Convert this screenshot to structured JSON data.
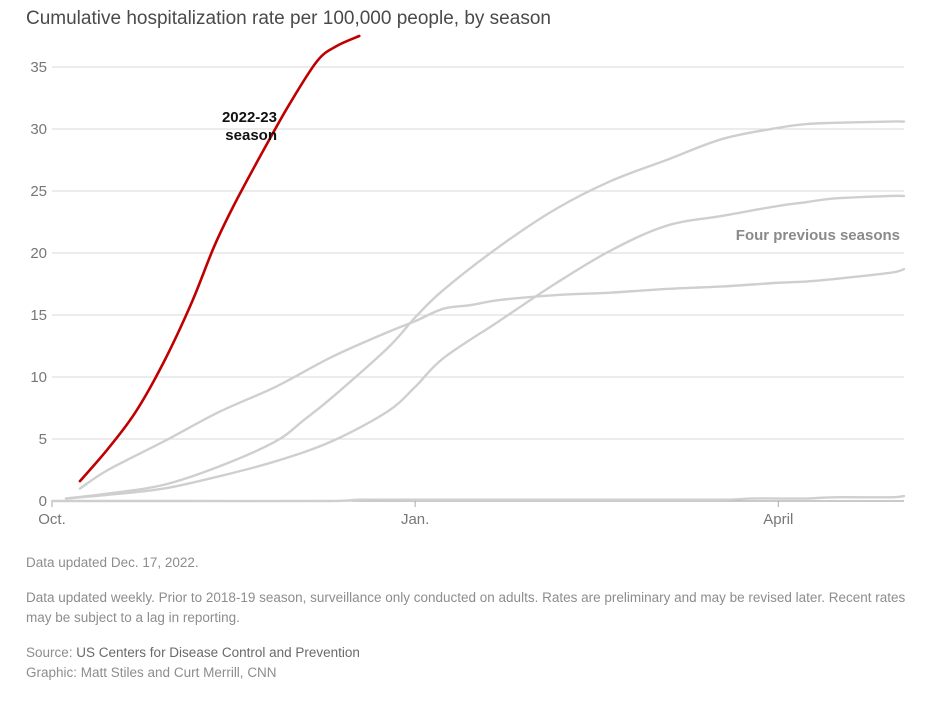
{
  "title": "Cumulative hospitalization rate per 100,000 people, by season",
  "colors": {
    "highlight": "#c00000",
    "previous": "#cfcfcf",
    "grid": "#d9d9d9",
    "axis": "#aaaaaa"
  },
  "chart_data": {
    "type": "line",
    "title": "Cumulative hospitalization rate per 100,000 people, by season",
    "xlabel": "",
    "ylabel": "",
    "x_units": "weeks since Oct. 1",
    "xlim": [
      0,
      30.5
    ],
    "ylim": [
      0,
      37.5
    ],
    "yticks": [
      0,
      5,
      10,
      15,
      20,
      25,
      30,
      35
    ],
    "xticks": [
      {
        "value": 0,
        "label": "Oct."
      },
      {
        "value": 13,
        "label": "Jan."
      },
      {
        "value": 26,
        "label": "April"
      }
    ],
    "grid": true,
    "annotations": [
      {
        "text_lines": [
          "2022-23",
          "season"
        ]
      },
      {
        "text_lines": [
          "Four previous seasons"
        ]
      }
    ],
    "series": [
      {
        "name": "2022-23 season",
        "color": "#c00000",
        "highlight": true,
        "x": [
          1,
          2,
          3,
          4,
          5,
          5.8,
          6.5,
          7.5,
          8.5,
          9.5,
          10.2,
          11
        ],
        "y": [
          1.6,
          4.2,
          7.2,
          11.2,
          16,
          20.5,
          23.8,
          28,
          32,
          35.5,
          36.7,
          37.5
        ]
      },
      {
        "name": "",
        "color": "#cfcfcf",
        "x": [
          1,
          2,
          4,
          6,
          8,
          10,
          12,
          13,
          14,
          15,
          16,
          18,
          20,
          22,
          24,
          26,
          27,
          28,
          30,
          30.5
        ],
        "y": [
          1,
          2.5,
          4.8,
          7.2,
          9.2,
          11.6,
          13.6,
          14.5,
          15.5,
          15.8,
          16.2,
          16.6,
          16.8,
          17.1,
          17.3,
          17.6,
          17.7,
          17.9,
          18.4,
          18.7
        ]
      },
      {
        "name": "",
        "color": "#cfcfcf",
        "x": [
          0.5,
          2,
          4,
          6,
          8,
          9,
          10,
          12,
          13,
          14,
          16,
          18,
          20,
          22,
          24,
          26,
          27,
          28,
          30,
          30.5
        ],
        "y": [
          0.2,
          0.6,
          1.3,
          2.8,
          4.8,
          6.5,
          8.3,
          12.3,
          14.8,
          17,
          20.5,
          23.5,
          25.8,
          27.5,
          29.2,
          30.1,
          30.4,
          30.5,
          30.6,
          30.6
        ]
      },
      {
        "name": "",
        "color": "#cfcfcf",
        "x": [
          0.5,
          2,
          4,
          6,
          8,
          10,
          12,
          13,
          14,
          16,
          18,
          20,
          22,
          24,
          26,
          27,
          28,
          30,
          30.5
        ],
        "y": [
          0.2,
          0.5,
          1,
          2,
          3.2,
          4.8,
          7.2,
          9.2,
          11.5,
          14.5,
          17.5,
          20.2,
          22.2,
          23,
          23.8,
          24.1,
          24.4,
          24.6,
          24.6
        ]
      },
      {
        "name": "",
        "color": "#cfcfcf",
        "x": [
          0,
          5,
          10,
          11,
          13,
          20,
          24,
          25,
          26,
          27,
          28,
          30,
          30.5
        ],
        "y": [
          0,
          0,
          0,
          0.1,
          0.1,
          0.1,
          0.1,
          0.2,
          0.2,
          0.2,
          0.3,
          0.3,
          0.4
        ]
      }
    ]
  },
  "notes": {
    "updated": "Data updated Dec. 17, 2022.",
    "description": "Data updated weekly. Prior to 2018-19 season, surveillance only conducted on adults. Rates are preliminary and may be revised later. Recent rates may be subject to a lag in reporting.",
    "source_prefix": "Source: ",
    "source_name": "US Centers for Disease Control and Prevention",
    "graphic_credit": "Graphic: Matt Stiles and Curt Merrill, CNN"
  }
}
